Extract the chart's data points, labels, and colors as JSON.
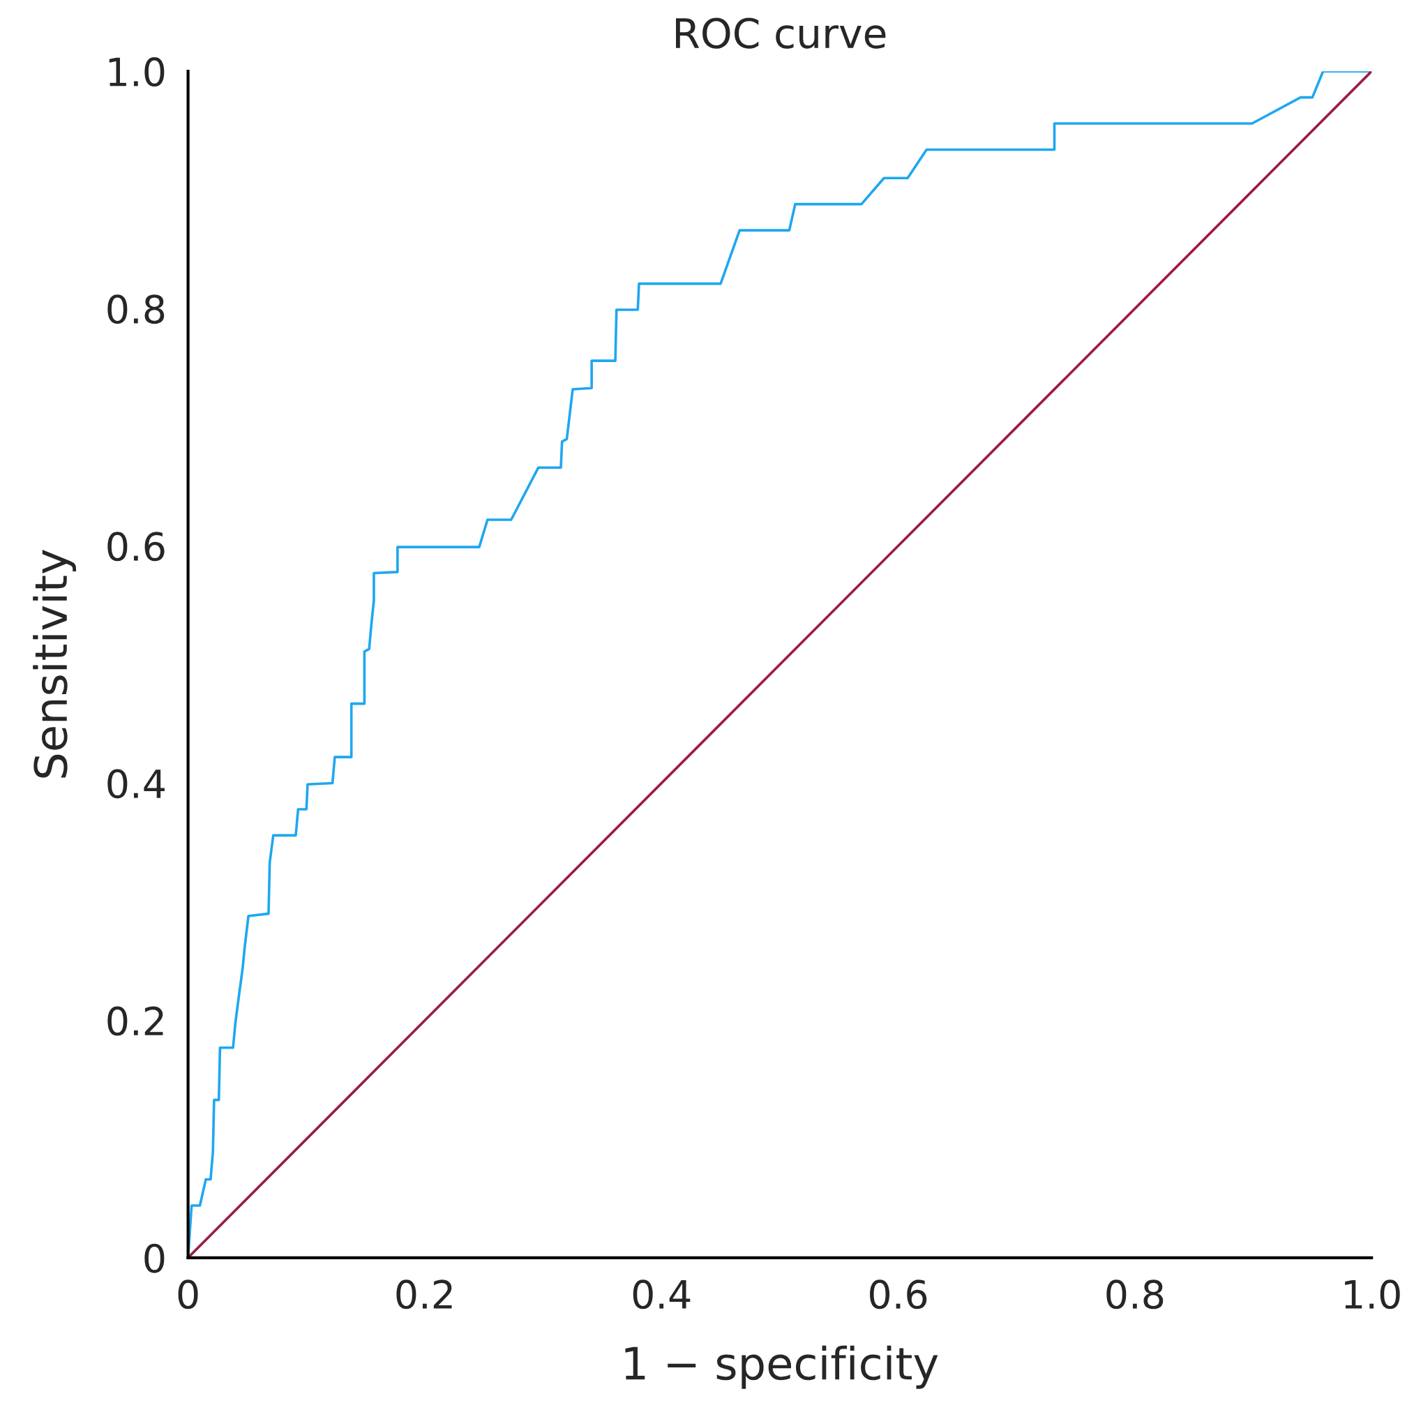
{
  "chart_data": {
    "type": "line",
    "title": "ROC curve",
    "xlabel": "1 − specificity",
    "ylabel": "Sensitivity",
    "xlim": [
      0,
      1
    ],
    "ylim": [
      0,
      1
    ],
    "xticks": [
      0,
      0.2,
      0.4,
      0.6,
      0.8,
      {
        "value": 1,
        "label": "1.0"
      }
    ],
    "yticks": [
      0,
      0.2,
      0.4,
      0.6,
      0.8,
      {
        "value": 1,
        "label": "1.0"
      }
    ],
    "grid": false,
    "legend": false,
    "series": [
      {
        "color": "#1ea7f0",
        "x": [
          0,
          0.003,
          0.01,
          0.015,
          0.019,
          0.021,
          0.022,
          0.026,
          0.027,
          0.038,
          0.04,
          0.043,
          0.046,
          0.048,
          0.051,
          0.068,
          0.069,
          0.072,
          0.091,
          0.093,
          0.1,
          0.101,
          0.122,
          0.124,
          0.138,
          0.138,
          0.149,
          0.149,
          0.153,
          0.155,
          0.157,
          0.157,
          0.177,
          0.177,
          0.246,
          0.253,
          0.273,
          0.296,
          0.315,
          0.316,
          0.32,
          0.325,
          0.341,
          0.341,
          0.361,
          0.362,
          0.38,
          0.381,
          0.45,
          0.466,
          0.508,
          0.513,
          0.569,
          0.588,
          0.608,
          0.624,
          0.732,
          0.732,
          0.899,
          0.94,
          0.95,
          0.959,
          1.0
        ],
        "values": [
          0,
          0.044,
          0.044,
          0.066,
          0.066,
          0.089,
          0.133,
          0.133,
          0.177,
          0.177,
          0.198,
          0.221,
          0.243,
          0.263,
          0.288,
          0.29,
          0.333,
          0.356,
          0.356,
          0.378,
          0.378,
          0.399,
          0.4,
          0.422,
          0.422,
          0.467,
          0.467,
          0.511,
          0.513,
          0.535,
          0.554,
          0.577,
          0.578,
          0.599,
          0.599,
          0.622,
          0.622,
          0.666,
          0.666,
          0.688,
          0.69,
          0.732,
          0.733,
          0.756,
          0.756,
          0.799,
          0.799,
          0.821,
          0.821,
          0.866,
          0.866,
          0.888,
          0.888,
          0.91,
          0.91,
          0.934,
          0.934,
          0.956,
          0.956,
          0.978,
          0.978,
          1.0,
          1.0
        ]
      },
      {
        "color": "#9b1b45",
        "x": [
          0,
          1
        ],
        "values": [
          0,
          1
        ]
      }
    ]
  }
}
